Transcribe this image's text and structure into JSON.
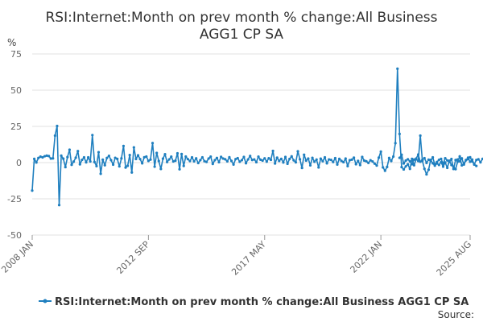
{
  "chart_data": {
    "type": "line",
    "title_lines": [
      "RSI:Internet:Month on prev month % change:All Business",
      "AGG1 CP SA"
    ],
    "ylabel": "%",
    "ylim": [
      -50,
      75
    ],
    "yticks": [
      75,
      50,
      25,
      0,
      -25,
      -50
    ],
    "xlim": [
      "2008-01",
      "2025-08"
    ],
    "xticks": [
      {
        "label": "2008 JAN",
        "date": "2008-01"
      },
      {
        "label": "2012 SEP",
        "date": "2012-09"
      },
      {
        "label": "2017 MAY",
        "date": "2017-05"
      },
      {
        "label": "2022 JAN",
        "date": "2022-01"
      },
      {
        "label": "2025 AUG",
        "date": "2025-08"
      }
    ],
    "grid": true,
    "legend_position": "bottom",
    "source_label": "Source:",
    "color": "#1f7fbf",
    "series": [
      {
        "name": "RSI:Internet:Month on prev month % change:All Business AGG1 CP SA",
        "start": "2008-01",
        "values": [
          -19.3,
          2.6,
          0.1,
          3.2,
          4.1,
          3.6,
          4.4,
          4.8,
          4.5,
          2.8,
          2.9,
          18.6,
          25.3,
          -29.3,
          4.8,
          2.7,
          -3.1,
          3.8,
          8.9,
          -1.5,
          0.7,
          3.4,
          7.9,
          -1.2,
          1.9,
          3.6,
          0.2,
          3.6,
          0.8,
          19.0,
          0.4,
          -2.4,
          7.2,
          -7.7,
          2.0,
          -1.8,
          3.2,
          4.7,
          1.7,
          -1.4,
          3.3,
          2.6,
          -2.6,
          2.9,
          11.5,
          -3.4,
          -2.2,
          5.2,
          -6.8,
          10.5,
          2.5,
          5.0,
          2.4,
          -0.5,
          3.7,
          4.2,
          1.2,
          2.1,
          13.5,
          -2.8,
          6.7,
          1.1,
          -4.4,
          2.7,
          5.8,
          0.4,
          2.2,
          4.1,
          0.8,
          1.3,
          6.4,
          -4.6,
          5.9,
          -2.3,
          4.2,
          2.4,
          1.1,
          3.6,
          0.9,
          2.9,
          -0.3,
          1.7,
          3.6,
          1.0,
          0.5,
          2.8,
          4.1,
          -0.9,
          1.7,
          3.2,
          0.3,
          4.0,
          2.8,
          2.3,
          0.9,
          3.7,
          1.2,
          -1.3,
          2.4,
          3.1,
          0.6,
          1.7,
          3.9,
          -0.4,
          2.2,
          4.6,
          1.8,
          2.2,
          0.3,
          4.1,
          2.0,
          1.4,
          2.9,
          0.7,
          3.0,
          1.9,
          8.1,
          -0.6,
          3.4,
          1.2,
          2.6,
          0.1,
          3.9,
          -0.8,
          2.5,
          4.3,
          1.6,
          0.2,
          7.8,
          2.3,
          -3.7,
          5.4,
          1.4,
          2.8,
          -1.9,
          3.3,
          0.6,
          2.1,
          -3.3,
          2.7,
          1.0,
          3.6,
          -0.5,
          2.2,
          1.9,
          0.4,
          3.1,
          -1.3,
          2.6,
          1.2,
          0.3,
          2.8,
          -2.4,
          1.7,
          2.0,
          3.4,
          -1.1,
          1.2,
          -1.7,
          3.9,
          1.4,
          0.9,
          -0.2,
          1.6,
          0.8,
          -0.7,
          -2.0,
          3.4,
          7.6,
          -3.3,
          -5.6,
          -3.0,
          3.2,
          1.1,
          4.2,
          13.4,
          64.8,
          19.8,
          -3.1,
          -4.7,
          -2.6,
          -1.2,
          -4.3,
          2.6,
          -1.8,
          2.4,
          1.1,
          18.6,
          1.2,
          -4.3,
          -8.1,
          -4.9,
          1.9,
          -0.5,
          -2.1,
          -0.6,
          -1.6,
          0.3,
          -2.8,
          0.1,
          -3.6,
          1.3,
          -1.7,
          -2.9,
          -4.5,
          0.7,
          4.3,
          -1.9,
          -0.6,
          1.8,
          3.4,
          0.6,
          2.1,
          -1.4,
          -2.3
        ],
        "segment2_start": "2022-10",
        "values2": [
          3.3,
          5.4,
          -0.6,
          1.4,
          2.3,
          0.9,
          -1.1,
          2.1,
          2.8,
          5.6,
          0.6,
          1.8,
          3.1,
          -0.2,
          2.0,
          1.2,
          3.6,
          -1.4,
          0.4,
          1.9,
          2.6,
          -0.8,
          3.0,
          1.5,
          0.4,
          2.5,
          -4.4,
          1.8,
          2.2,
          0.9,
          2.9,
          -1.3,
          1.6,
          2.4,
          3.7,
          0.8,
          -1.1,
          1.8,
          2.3,
          0.2,
          2.6,
          0.8,
          1.9,
          0.6,
          1.5,
          2.8,
          1.2,
          1.7,
          1.3,
          2.1,
          0.9,
          1.6,
          1.8,
          1.4,
          2.0
        ]
      }
    ]
  }
}
